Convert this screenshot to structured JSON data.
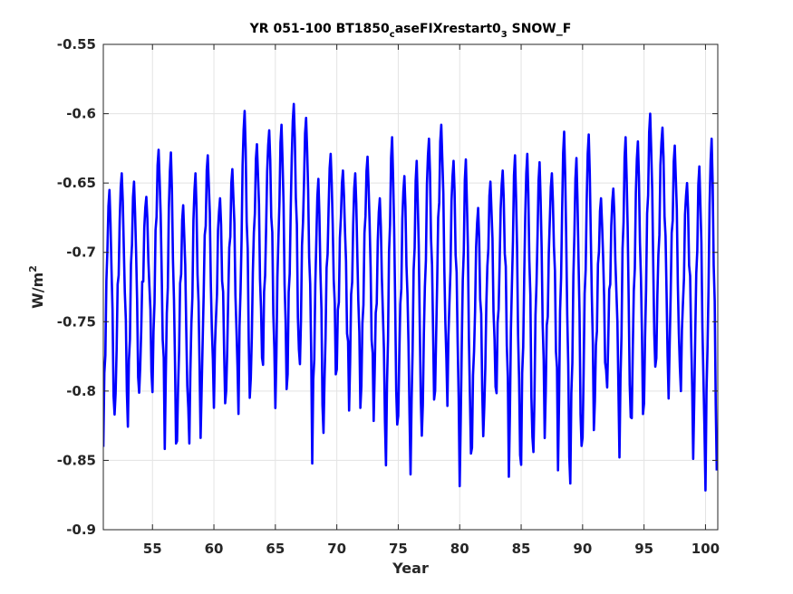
{
  "chart_data": {
    "type": "line",
    "title_parts": {
      "a": "YR 051-100 BT1850",
      "sub1": "c",
      "b": "aseFIXrestart0",
      "sub2": "3",
      "c": " SNOW_F"
    },
    "xlabel": "Year",
    "ylabel_parts": {
      "base": "W/m",
      "sup": "2"
    },
    "xlim": [
      51,
      101
    ],
    "ylim": [
      -0.9,
      -0.55
    ],
    "xticks": [
      55,
      60,
      65,
      70,
      75,
      80,
      85,
      90,
      95,
      100
    ],
    "xtick_labels": [
      "55",
      "60",
      "65",
      "70",
      "75",
      "80",
      "85",
      "90",
      "95",
      "100"
    ],
    "yticks": [
      -0.55,
      -0.6,
      -0.65,
      -0.7,
      -0.75,
      -0.8,
      -0.85,
      -0.9
    ],
    "ytick_labels": [
      "-0.55",
      "-0.6",
      "-0.65",
      "-0.7",
      "-0.75",
      "-0.8",
      "-0.85",
      "-0.9"
    ],
    "grid": true,
    "series_color": "#0000ff",
    "sampling": "monthly, 12 points per year starting at year 51",
    "annual_cycle": {
      "years": [
        51,
        52,
        53,
        54,
        55,
        56,
        57,
        58,
        59,
        60,
        61,
        62,
        63,
        64,
        65,
        66,
        67,
        68,
        69,
        70,
        71,
        72,
        73,
        74,
        75,
        76,
        77,
        78,
        79,
        80,
        81,
        82,
        83,
        84,
        85,
        86,
        87,
        88,
        89,
        90,
        91,
        92,
        93,
        94,
        95,
        96,
        97,
        98,
        99,
        100
      ],
      "max": [
        -0.655,
        -0.643,
        -0.649,
        -0.66,
        -0.626,
        -0.628,
        -0.666,
        -0.643,
        -0.63,
        -0.661,
        -0.64,
        -0.598,
        -0.622,
        -0.612,
        -0.608,
        -0.593,
        -0.603,
        -0.647,
        -0.629,
        -0.641,
        -0.643,
        -0.631,
        -0.661,
        -0.617,
        -0.645,
        -0.634,
        -0.618,
        -0.608,
        -0.634,
        -0.633,
        -0.668,
        -0.649,
        -0.641,
        -0.63,
        -0.629,
        -0.635,
        -0.643,
        -0.613,
        -0.632,
        -0.615,
        -0.661,
        -0.654,
        -0.617,
        -0.62,
        -0.6,
        -0.61,
        -0.623,
        -0.65,
        -0.638,
        -0.618
      ],
      "min": [
        -0.85,
        -0.81,
        -0.835,
        -0.79,
        -0.81,
        -0.853,
        -0.845,
        -0.848,
        -0.808,
        -0.82,
        -0.808,
        -0.828,
        -0.8,
        -0.79,
        -0.823,
        -0.798,
        -0.79,
        -0.863,
        -0.8,
        -0.792,
        -0.823,
        -0.805,
        -0.83,
        -0.866,
        -0.827,
        -0.872,
        -0.82,
        -0.81,
        -0.82,
        -0.881,
        -0.85,
        -0.82,
        -0.81,
        -0.874,
        -0.865,
        -0.855,
        -0.81,
        -0.87,
        -0.879,
        -0.845,
        -0.815,
        -0.805,
        -0.86,
        -0.83,
        -0.82,
        -0.785,
        -0.815,
        -0.808,
        -0.86,
        -0.885
      ]
    }
  }
}
